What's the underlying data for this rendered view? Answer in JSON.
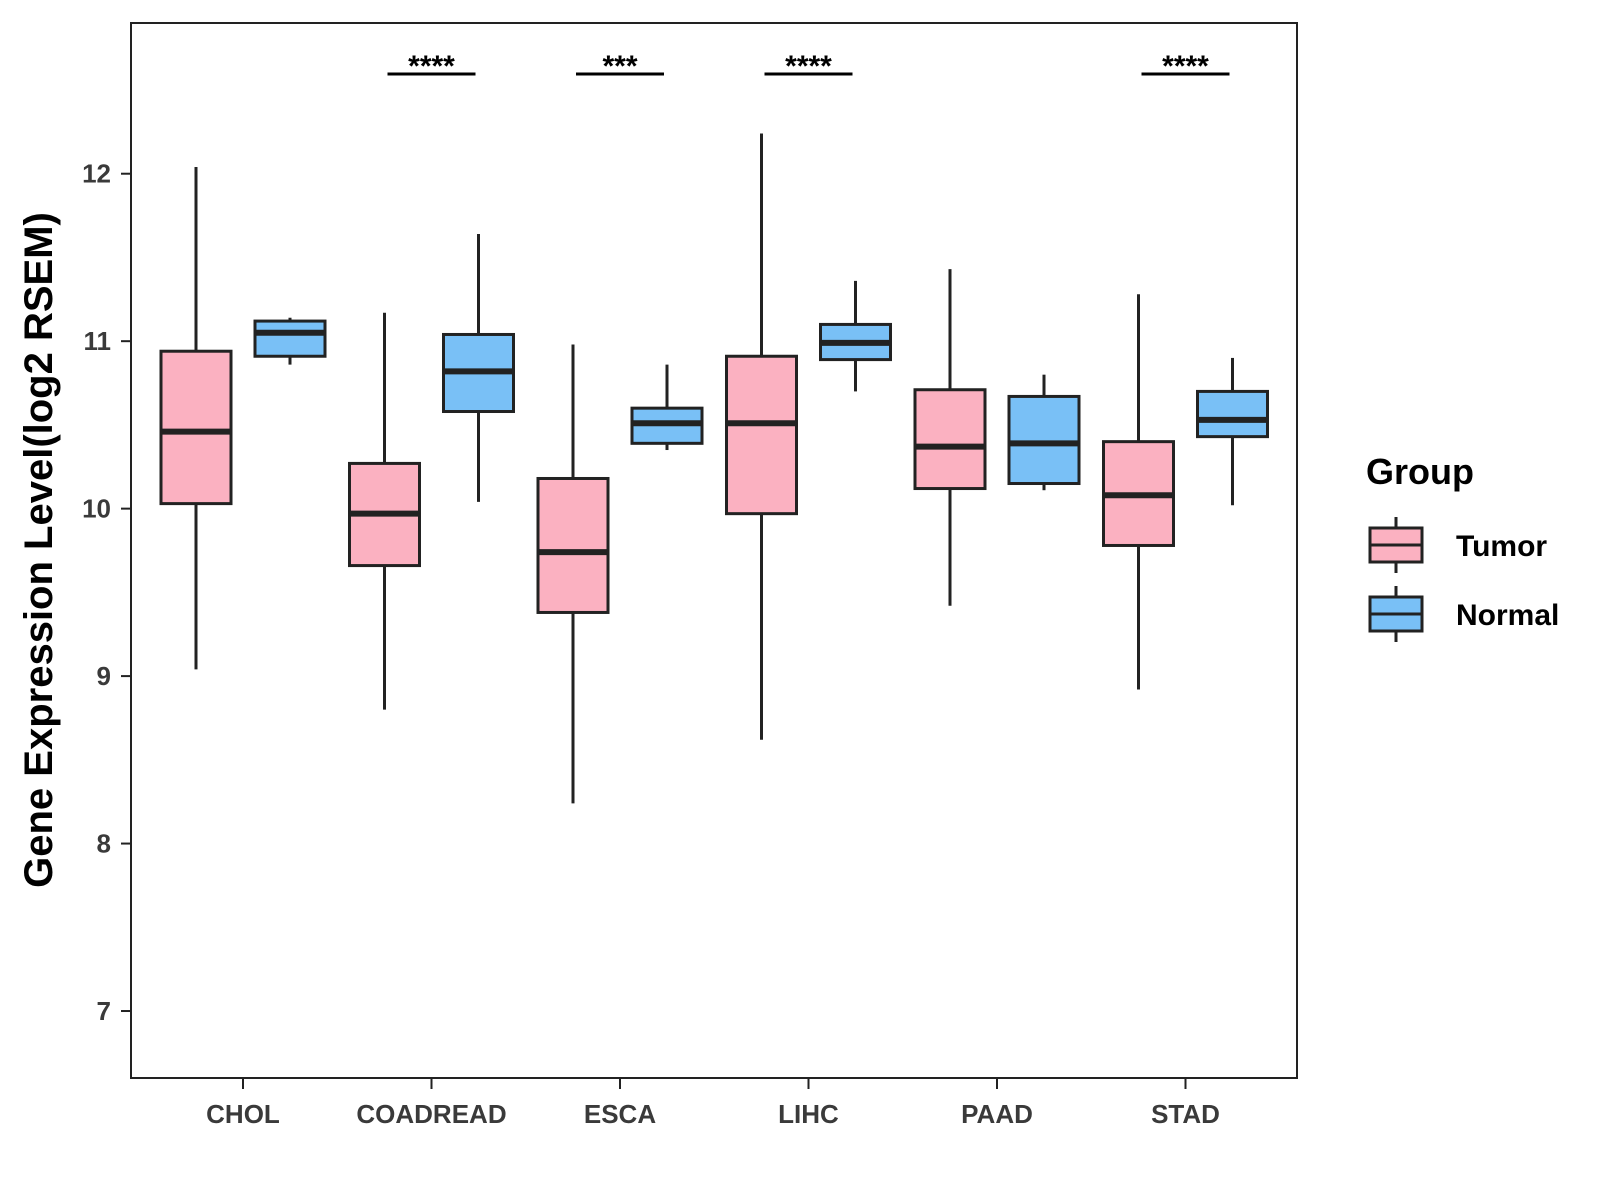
{
  "chart_data": {
    "type": "box",
    "title": "",
    "xlabel": "",
    "ylabel": "Gene Expression Level(log2 RSEM)",
    "ylim": [
      6.6,
      12.9
    ],
    "yticks": [
      7,
      8,
      9,
      10,
      11,
      12
    ],
    "grid": false,
    "legend_position": "right",
    "categories": [
      "CHOL",
      "COADREAD",
      "ESCA",
      "LIHC",
      "PAAD",
      "STAD"
    ],
    "legend": {
      "title": "Group",
      "entries": [
        "Tumor",
        "Normal"
      ]
    },
    "series": [
      {
        "name": "Tumor",
        "color": "#FBB1C1",
        "boxes": [
          {
            "whisker_low": 9.04,
            "q1": 10.03,
            "median": 10.46,
            "q3": 10.94,
            "whisker_high": 12.04
          },
          {
            "whisker_low": 8.8,
            "q1": 9.66,
            "median": 9.97,
            "q3": 10.27,
            "whisker_high": 11.17
          },
          {
            "whisker_low": 8.24,
            "q1": 9.38,
            "median": 9.74,
            "q3": 10.18,
            "whisker_high": 10.98
          },
          {
            "whisker_low": 8.62,
            "q1": 9.97,
            "median": 10.51,
            "q3": 10.91,
            "whisker_high": 12.24
          },
          {
            "whisker_low": 9.42,
            "q1": 10.12,
            "median": 10.37,
            "q3": 10.71,
            "whisker_high": 11.43
          },
          {
            "whisker_low": 8.92,
            "q1": 9.78,
            "median": 10.08,
            "q3": 10.4,
            "whisker_high": 11.28
          }
        ]
      },
      {
        "name": "Normal",
        "color": "#79C0F6",
        "boxes": [
          {
            "whisker_low": 10.86,
            "q1": 10.91,
            "median": 11.05,
            "q3": 11.12,
            "whisker_high": 11.14
          },
          {
            "whisker_low": 10.04,
            "q1": 10.58,
            "median": 10.82,
            "q3": 11.04,
            "whisker_high": 11.64
          },
          {
            "whisker_low": 10.35,
            "q1": 10.39,
            "median": 10.51,
            "q3": 10.6,
            "whisker_high": 10.86
          },
          {
            "whisker_low": 10.7,
            "q1": 10.89,
            "median": 10.99,
            "q3": 11.1,
            "whisker_high": 11.36
          },
          {
            "whisker_low": 10.11,
            "q1": 10.15,
            "median": 10.39,
            "q3": 10.67,
            "whisker_high": 10.8
          },
          {
            "whisker_low": 10.02,
            "q1": 10.43,
            "median": 10.53,
            "q3": 10.7,
            "whisker_high": 10.9
          }
        ]
      }
    ],
    "annotations": [
      {
        "category": "COADREAD",
        "label": "****"
      },
      {
        "category": "ESCA",
        "label": "***"
      },
      {
        "category": "LIHC",
        "label": "****"
      },
      {
        "category": "STAD",
        "label": "****"
      }
    ]
  },
  "colors": {
    "outline": "#222222",
    "axis": "#222222",
    "tick_text": "#3a3a3a"
  }
}
